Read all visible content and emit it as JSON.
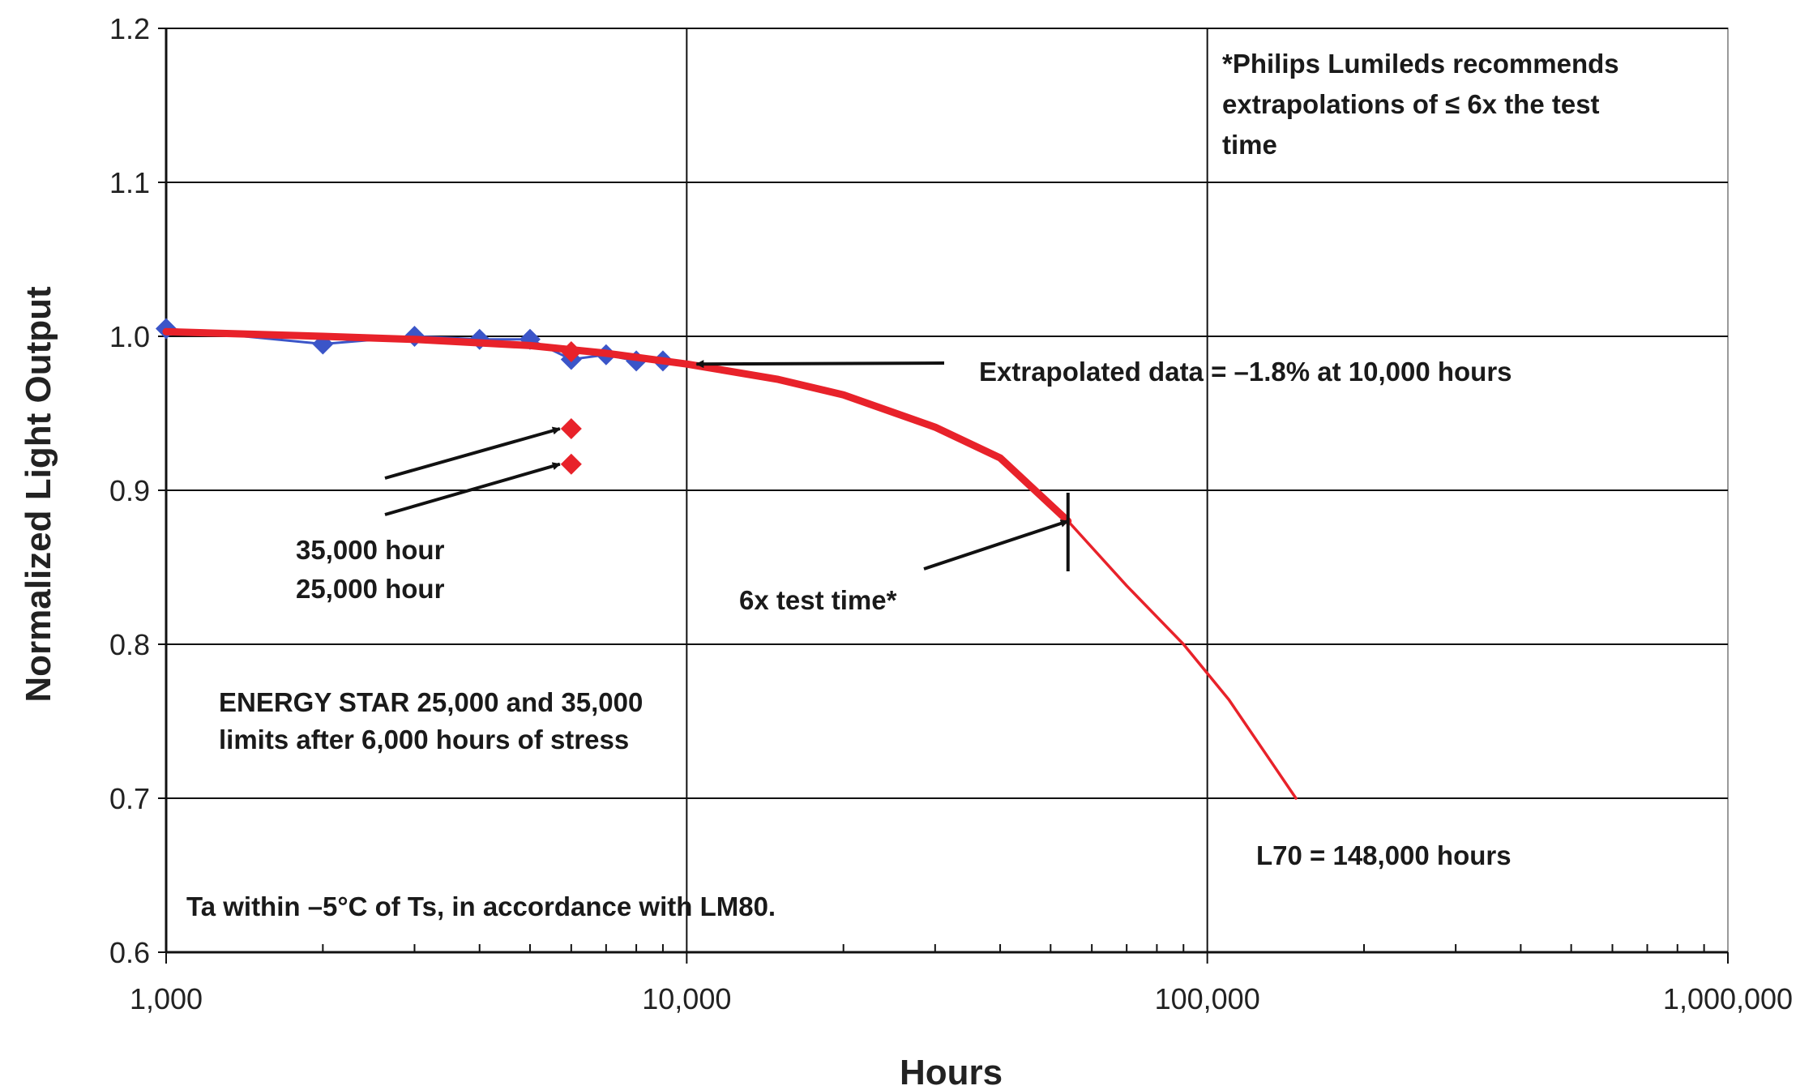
{
  "chart_data": {
    "type": "line",
    "xlabel": "Hours",
    "ylabel": "Normalized Light Output",
    "x_scale": "log",
    "xlim": [
      1000,
      1000000
    ],
    "ylim": [
      0.6,
      1.2
    ],
    "x_ticks": [
      1000,
      10000,
      100000,
      1000000
    ],
    "x_tick_labels": [
      "1,000",
      "10,000",
      "100,000",
      "1,000,000"
    ],
    "y_ticks": [
      0.6,
      0.7,
      0.8,
      0.9,
      1.0,
      1.1,
      1.2
    ],
    "y_tick_labels": [
      "0.6",
      "0.7",
      "0.8",
      "0.9",
      "1.0",
      "1.1",
      "1.2"
    ],
    "grid": true,
    "series": [
      {
        "color": "#3b55c8",
        "marker": "diamond",
        "points": [
          {
            "x": 1000,
            "y": 1.005
          },
          {
            "x": 2000,
            "y": 0.995
          },
          {
            "x": 3000,
            "y": 1.0
          },
          {
            "x": 4000,
            "y": 0.998
          },
          {
            "x": 5000,
            "y": 0.998
          },
          {
            "x": 6000,
            "y": 0.985
          },
          {
            "x": 7000,
            "y": 0.988
          },
          {
            "x": 8000,
            "y": 0.984
          },
          {
            "x": 9000,
            "y": 0.984
          }
        ]
      },
      {
        "color": "#e8222a",
        "style": "fit-curve",
        "points": [
          {
            "x": 1000,
            "y": 1.003
          },
          {
            "x": 2000,
            "y": 1.0
          },
          {
            "x": 3000,
            "y": 0.998
          },
          {
            "x": 5000,
            "y": 0.994
          },
          {
            "x": 7000,
            "y": 0.989
          },
          {
            "x": 10000,
            "y": 0.982
          },
          {
            "x": 15000,
            "y": 0.972
          },
          {
            "x": 20000,
            "y": 0.962
          },
          {
            "x": 30000,
            "y": 0.941
          },
          {
            "x": 40000,
            "y": 0.921
          },
          {
            "x": 54000,
            "y": 0.88
          },
          {
            "x": 70000,
            "y": 0.838
          },
          {
            "x": 90000,
            "y": 0.8
          },
          {
            "x": 110000,
            "y": 0.764
          },
          {
            "x": 130000,
            "y": 0.728
          },
          {
            "x": 148000,
            "y": 0.7
          }
        ]
      },
      {
        "color": "#e8222a",
        "marker": "diamond",
        "points": [
          {
            "x": 6000,
            "y": 0.99
          },
          {
            "x": 6000,
            "y": 0.94
          },
          {
            "x": 6000,
            "y": 0.917
          }
        ]
      }
    ],
    "annotations": [
      {
        "lines": [
          "*Philips Lumileds recommends",
          "extrapolations of ≤ 6x the test",
          "time"
        ]
      },
      {
        "lines": [
          "Extrapolated data = –1.8% at 10,000 hours"
        ],
        "arrow_to": {
          "x": 10000,
          "y": 0.982
        }
      },
      {
        "lines": [
          "35,000 hour",
          "25,000 hour"
        ],
        "arrows_to": [
          {
            "x": 6000,
            "y": 0.94
          },
          {
            "x": 6000,
            "y": 0.917
          }
        ]
      },
      {
        "lines": [
          "6x test time*"
        ],
        "arrow_to": {
          "x": 54000,
          "y": 0.88
        }
      },
      {
        "lines": [
          "ENERGY STAR  25,000 and 35,000",
          "limits after 6,000 hours of stress"
        ]
      },
      {
        "lines": [
          "L70 = 148,000 hours"
        ]
      },
      {
        "lines": [
          "Ta within –5°C of Ts, in accordance with LM80."
        ]
      }
    ]
  }
}
